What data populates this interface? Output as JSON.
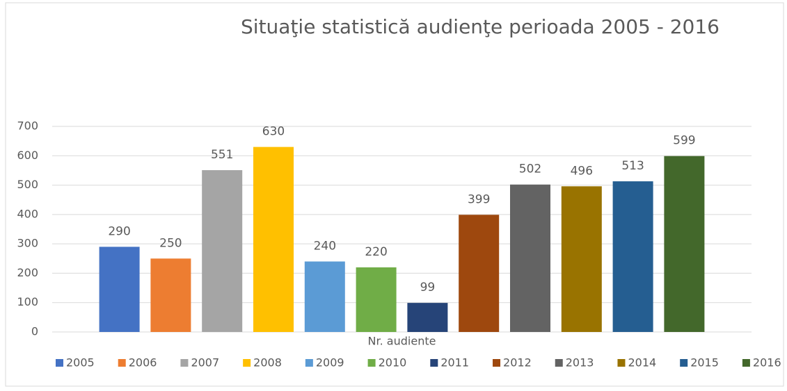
{
  "chart_data": {
    "type": "bar",
    "title": "Situaţie statistică audienţe perioada 2005 - 2016",
    "categories": [
      "Nr. audiente"
    ],
    "series": [
      {
        "name": "2005",
        "color": "#4472c4",
        "values": [
          290
        ]
      },
      {
        "name": "2006",
        "color": "#ed7d31",
        "values": [
          250
        ]
      },
      {
        "name": "2007",
        "color": "#a5a5a5",
        "values": [
          551
        ]
      },
      {
        "name": "2008",
        "color": "#ffc000",
        "values": [
          630
        ]
      },
      {
        "name": "2009",
        "color": "#5b9bd5",
        "values": [
          240
        ]
      },
      {
        "name": "2010",
        "color": "#70ad47",
        "values": [
          220
        ]
      },
      {
        "name": "2011",
        "color": "#264478",
        "values": [
          99
        ]
      },
      {
        "name": "2012",
        "color": "#9e480e",
        "values": [
          399
        ]
      },
      {
        "name": "2013",
        "color": "#636363",
        "values": [
          502
        ]
      },
      {
        "name": "2014",
        "color": "#997300",
        "values": [
          496
        ]
      },
      {
        "name": "2015",
        "color": "#255e91",
        "values": [
          513
        ]
      },
      {
        "name": "2016",
        "color": "#43682b",
        "values": [
          599
        ]
      }
    ],
    "ylim": [
      0,
      700
    ],
    "yticks": [
      0,
      100,
      200,
      300,
      400,
      500,
      600,
      700
    ],
    "grid": true,
    "legend": "bottom"
  }
}
